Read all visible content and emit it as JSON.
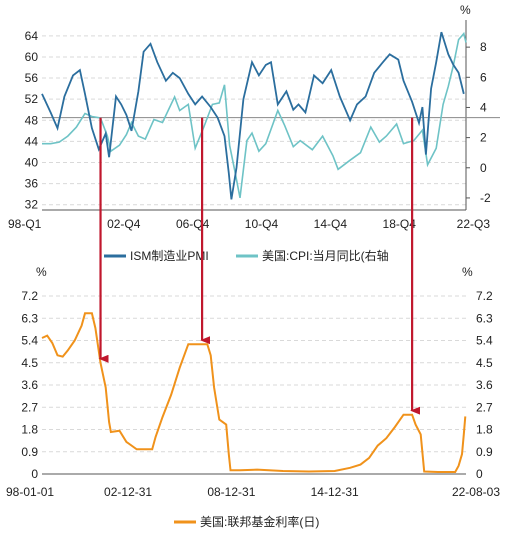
{
  "colors": {
    "pmi": "#2b6e9e",
    "cpi": "#6ec3c6",
    "fed": "#f0921b",
    "arrow": "#c0172d",
    "ref_line": "#888888"
  },
  "chart_data": [
    {
      "type": "line",
      "units": {
        "right": "%"
      },
      "x_ticks": [
        "98-Q1",
        "02-Q4",
        "06-Q4",
        "10-Q4",
        "14-Q4",
        "18-Q4",
        "22-Q3"
      ],
      "left_axis": {
        "ticks": [
          "32",
          "36",
          "40",
          "44",
          "48",
          "52",
          "56",
          "60",
          "64"
        ],
        "ylim": [
          31,
          67
        ]
      },
      "right_axis": {
        "ticks": [
          "-2",
          "0",
          "2",
          "4",
          "6",
          "8"
        ],
        "ylim": [
          -2.8,
          9.8
        ]
      },
      "reference_line": {
        "axis": "left",
        "value": 48.5
      },
      "legend": [
        "ISM制造业PMI",
        "美国:CPI:当月同比(右轴"
      ],
      "series": [
        {
          "name": "ISM制造业PMI",
          "axis": "left",
          "points": [
            [
              1998.0,
              53.0
            ],
            [
              1998.5,
              49.5
            ],
            [
              1998.9,
              46.5
            ],
            [
              1999.3,
              52.5
            ],
            [
              1999.8,
              56.5
            ],
            [
              2000.2,
              57.5
            ],
            [
              2000.5,
              53.0
            ],
            [
              2000.9,
              46.5
            ],
            [
              2001.3,
              42.5
            ],
            [
              2001.7,
              45.5
            ],
            [
              2001.9,
              41.0
            ],
            [
              2002.3,
              52.5
            ],
            [
              2002.6,
              51.0
            ],
            [
              2002.9,
              49.0
            ],
            [
              2003.2,
              46.0
            ],
            [
              2003.6,
              53.5
            ],
            [
              2003.9,
              61.0
            ],
            [
              2004.3,
              62.5
            ],
            [
              2004.7,
              59.0
            ],
            [
              2005.2,
              55.5
            ],
            [
              2005.6,
              57.0
            ],
            [
              2006.0,
              56.0
            ],
            [
              2006.5,
              53.0
            ],
            [
              2006.9,
              51.0
            ],
            [
              2007.3,
              52.5
            ],
            [
              2007.8,
              50.5
            ],
            [
              2008.2,
              48.5
            ],
            [
              2008.6,
              45.0
            ],
            [
              2008.85,
              38.0
            ],
            [
              2009.0,
              33.0
            ],
            [
              2009.3,
              39.0
            ],
            [
              2009.7,
              52.0
            ],
            [
              2010.2,
              59.0
            ],
            [
              2010.6,
              56.5
            ],
            [
              2011.0,
              58.5
            ],
            [
              2011.3,
              59.0
            ],
            [
              2011.7,
              51.0
            ],
            [
              2012.2,
              53.5
            ],
            [
              2012.6,
              50.0
            ],
            [
              2012.9,
              51.0
            ],
            [
              2013.3,
              49.5
            ],
            [
              2013.8,
              56.5
            ],
            [
              2014.3,
              55.0
            ],
            [
              2014.8,
              57.5
            ],
            [
              2015.3,
              52.5
            ],
            [
              2015.9,
              48.0
            ],
            [
              2016.3,
              51.0
            ],
            [
              2016.8,
              52.5
            ],
            [
              2017.3,
              57.0
            ],
            [
              2017.8,
              59.0
            ],
            [
              2018.2,
              60.5
            ],
            [
              2018.7,
              59.5
            ],
            [
              2019.0,
              55.5
            ],
            [
              2019.5,
              51.5
            ],
            [
              2019.9,
              47.5
            ],
            [
              2020.1,
              50.5
            ],
            [
              2020.3,
              41.5
            ],
            [
              2020.6,
              54.0
            ],
            [
              2020.9,
              59.0
            ],
            [
              2021.2,
              64.7
            ],
            [
              2021.6,
              60.5
            ],
            [
              2021.9,
              58.5
            ],
            [
              2022.2,
              57.0
            ],
            [
              2022.5,
              53.0
            ]
          ]
        },
        {
          "name": "美国:CPI:当月同比(右轴",
          "axis": "right",
          "points": [
            [
              1998.0,
              1.6
            ],
            [
              1998.5,
              1.6
            ],
            [
              1999.0,
              1.7
            ],
            [
              1999.5,
              2.1
            ],
            [
              2000.0,
              2.7
            ],
            [
              2000.5,
              3.6
            ],
            [
              2000.9,
              3.4
            ],
            [
              2001.4,
              3.3
            ],
            [
              2001.8,
              2.1
            ],
            [
              2002.0,
              1.1
            ],
            [
              2002.5,
              1.5
            ],
            [
              2002.9,
              2.2
            ],
            [
              2003.2,
              3.0
            ],
            [
              2003.6,
              2.1
            ],
            [
              2004.0,
              1.9
            ],
            [
              2004.5,
              3.2
            ],
            [
              2005.0,
              3.0
            ],
            [
              2005.7,
              4.7
            ],
            [
              2006.0,
              3.8
            ],
            [
              2006.5,
              4.2
            ],
            [
              2006.9,
              1.3
            ],
            [
              2007.4,
              2.7
            ],
            [
              2007.9,
              4.2
            ],
            [
              2008.3,
              4.3
            ],
            [
              2008.6,
              5.5
            ],
            [
              2008.9,
              1.5
            ],
            [
              2009.2,
              -0.2
            ],
            [
              2009.5,
              -2.0
            ],
            [
              2009.9,
              1.8
            ],
            [
              2010.2,
              2.3
            ],
            [
              2010.6,
              1.1
            ],
            [
              2011.0,
              1.6
            ],
            [
              2011.7,
              3.8
            ],
            [
              2012.1,
              2.8
            ],
            [
              2012.6,
              1.4
            ],
            [
              2013.0,
              1.8
            ],
            [
              2013.7,
              1.2
            ],
            [
              2014.3,
              2.1
            ],
            [
              2014.9,
              0.8
            ],
            [
              2015.2,
              -0.1
            ],
            [
              2015.9,
              0.5
            ],
            [
              2016.5,
              1.0
            ],
            [
              2017.1,
              2.7
            ],
            [
              2017.6,
              1.7
            ],
            [
              2018.0,
              2.1
            ],
            [
              2018.6,
              2.9
            ],
            [
              2019.0,
              1.6
            ],
            [
              2019.6,
              1.8
            ],
            [
              2020.1,
              2.5
            ],
            [
              2020.4,
              0.2
            ],
            [
              2020.9,
              1.3
            ],
            [
              2021.3,
              4.2
            ],
            [
              2021.6,
              5.4
            ],
            [
              2021.9,
              6.8
            ],
            [
              2022.2,
              8.5
            ],
            [
              2022.5,
              8.9
            ],
            [
              2022.63,
              8.3
            ]
          ]
        }
      ],
      "arrows": [
        {
          "x": 2001.4,
          "from": 48.5,
          "to": 31.0
        },
        {
          "x": 2007.3,
          "from": 48.5,
          "to": 31.0
        },
        {
          "x": 2019.5,
          "from": 48.5,
          "to": 31.0
        }
      ]
    },
    {
      "type": "line",
      "units": {
        "left": "%",
        "right": "%"
      },
      "x_ticks": [
        "98-01-01",
        "02-12-31",
        "08-12-31",
        "14-12-31",
        "22-08-03"
      ],
      "y_axis": {
        "ticks": [
          "0",
          "0.9",
          "1.8",
          "2.7",
          "3.6",
          "4.5",
          "5.4",
          "6.3",
          "7.2"
        ],
        "ylim": [
          0,
          7.2
        ]
      },
      "legend": [
        "美国:联邦基金利率(日)"
      ],
      "series": [
        {
          "name": "美国:联邦基金利率(日)",
          "points": [
            [
              1998.0,
              5.5
            ],
            [
              1998.3,
              5.6
            ],
            [
              1998.6,
              5.3
            ],
            [
              1998.9,
              4.8
            ],
            [
              1999.2,
              4.75
            ],
            [
              1999.5,
              5.0
            ],
            [
              1999.9,
              5.4
            ],
            [
              2000.3,
              6.0
            ],
            [
              2000.5,
              6.5
            ],
            [
              2000.9,
              6.5
            ],
            [
              2001.1,
              5.9
            ],
            [
              2001.4,
              4.5
            ],
            [
              2001.7,
              3.5
            ],
            [
              2001.9,
              2.1
            ],
            [
              2002.0,
              1.7
            ],
            [
              2002.5,
              1.75
            ],
            [
              2002.9,
              1.3
            ],
            [
              2003.5,
              1.0
            ],
            [
              2004.4,
              1.0
            ],
            [
              2004.6,
              1.5
            ],
            [
              2005.0,
              2.3
            ],
            [
              2005.5,
              3.2
            ],
            [
              2006.0,
              4.3
            ],
            [
              2006.5,
              5.25
            ],
            [
              2007.6,
              5.25
            ],
            [
              2007.8,
              4.8
            ],
            [
              2008.0,
              3.5
            ],
            [
              2008.3,
              2.2
            ],
            [
              2008.7,
              2.0
            ],
            [
              2008.85,
              0.8
            ],
            [
              2008.95,
              0.15
            ],
            [
              2009.5,
              0.15
            ],
            [
              2010.5,
              0.18
            ],
            [
              2012.0,
              0.12
            ],
            [
              2013.5,
              0.1
            ],
            [
              2015.0,
              0.12
            ],
            [
              2015.9,
              0.25
            ],
            [
              2016.5,
              0.38
            ],
            [
              2017.0,
              0.65
            ],
            [
              2017.5,
              1.15
            ],
            [
              2018.0,
              1.45
            ],
            [
              2018.5,
              1.9
            ],
            [
              2019.0,
              2.4
            ],
            [
              2019.5,
              2.4
            ],
            [
              2019.7,
              2.0
            ],
            [
              2020.0,
              1.6
            ],
            [
              2020.2,
              0.1
            ],
            [
              2021.0,
              0.08
            ],
            [
              2022.0,
              0.08
            ],
            [
              2022.2,
              0.33
            ],
            [
              2022.4,
              0.8
            ],
            [
              2022.5,
              1.6
            ],
            [
              2022.59,
              2.33
            ]
          ]
        }
      ]
    }
  ]
}
